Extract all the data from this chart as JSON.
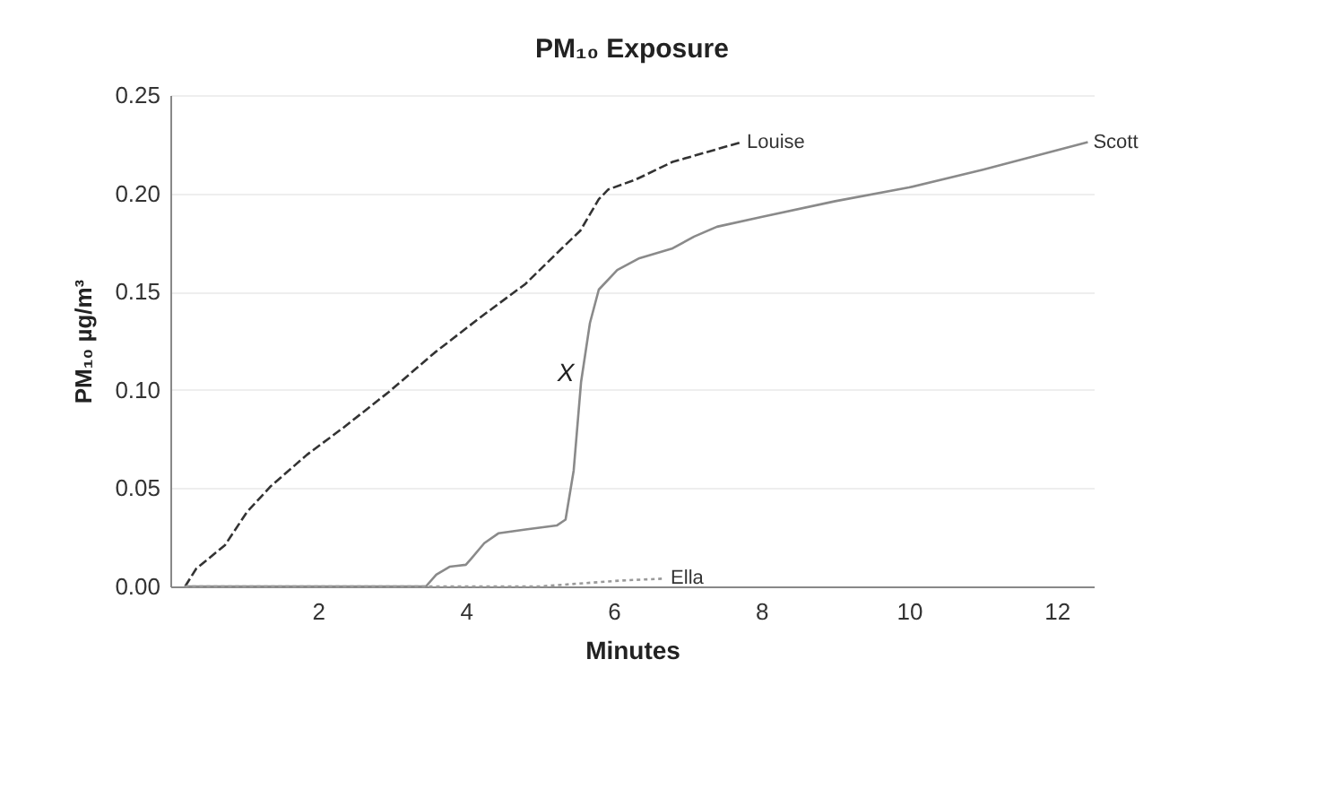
{
  "chart_data": {
    "type": "line",
    "title": "PM₁₀ Exposure",
    "xlabel": "Minutes",
    "ylabel": "PM₁₀ µg/m³",
    "xlim": [
      0,
      12.5
    ],
    "xticks": [
      2,
      4,
      6,
      8,
      10,
      12
    ],
    "ylim": [
      0,
      0.25
    ],
    "yticks": [
      {
        "value": 0,
        "label": "0.00"
      },
      {
        "value": 0.05,
        "label": "0.05"
      },
      {
        "value": 0.1,
        "label": "0.10"
      },
      {
        "value": 0.15,
        "label": "0.15"
      },
      {
        "value": 0.2,
        "label": "0.20"
      },
      {
        "value": 0.25,
        "label": "0.25"
      }
    ],
    "grid": "y",
    "marker": "none",
    "annotations": [
      {
        "text": "X",
        "x": 5.45,
        "y": 0.108
      }
    ],
    "series": [
      {
        "name": "Louise",
        "color": "#333333",
        "line_style": "dashed",
        "x": [
          0.2,
          0.35,
          0.74,
          1.04,
          1.36,
          1.85,
          2.35,
          2.96,
          3.58,
          4.2,
          4.81,
          5.3,
          5.55,
          5.8,
          5.93,
          6.3,
          6.8,
          7.73
        ],
        "values": [
          0,
          0.009,
          0.021,
          0.038,
          0.051,
          0.067,
          0.081,
          0.099,
          0.119,
          0.137,
          0.154,
          0.172,
          0.181,
          0.197,
          0.202,
          0.207,
          0.216,
          0.226
        ]
      },
      {
        "name": "Scott",
        "color": "#8a8a8a",
        "line_style": "solid",
        "x": [
          0.2,
          3.46,
          3.6,
          3.78,
          4.0,
          4.07,
          4.25,
          4.44,
          4.81,
          5.23,
          5.35,
          5.46,
          5.56,
          5.68,
          5.8,
          6.05,
          6.35,
          6.8,
          7.09,
          7.4,
          8.0,
          9.0,
          10.0,
          11.0,
          12.42
        ],
        "values": [
          0,
          0,
          0.006,
          0.01,
          0.011,
          0.014,
          0.022,
          0.027,
          0.029,
          0.031,
          0.034,
          0.059,
          0.104,
          0.134,
          0.151,
          0.161,
          0.167,
          0.172,
          0.178,
          0.183,
          0.188,
          0.196,
          0.203,
          0.212,
          0.226
        ]
      },
      {
        "name": "Ella",
        "color": "#9a9a9a",
        "line_style": "dotted",
        "x": [
          0.2,
          5.0,
          6.1,
          6.7
        ],
        "values": [
          0,
          0,
          0.003,
          0.004
        ]
      }
    ]
  }
}
